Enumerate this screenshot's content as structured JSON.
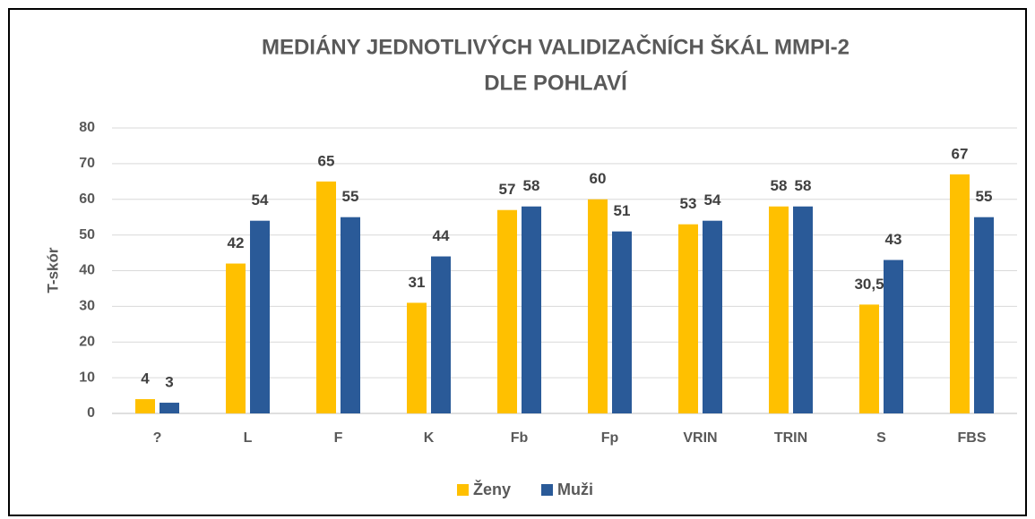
{
  "chart_data": {
    "type": "bar",
    "title": [
      "MEDIÁNY JEDNOTLIVÝCH VALIDIZAČNÍCH ŠKÁL MMPI-2",
      "DLE POHLAVÍ"
    ],
    "y_label": "T-skór",
    "categories": [
      "?",
      "L",
      "F",
      "K",
      "Fb",
      "Fp",
      "VRIN",
      "TRIN",
      "S",
      "FBS"
    ],
    "series": [
      {
        "name": "Ženy",
        "color": "#ffc000",
        "values": [
          4,
          42,
          65,
          31,
          57,
          60,
          53,
          58,
          30.5,
          67
        ],
        "value_labels": [
          "4",
          "42",
          "65",
          "31",
          "57",
          "60",
          "53",
          "58",
          "30,5",
          "67"
        ]
      },
      {
        "name": "Muži",
        "color": "#2a5a98",
        "values": [
          3,
          54,
          55,
          44,
          58,
          51,
          54,
          58,
          43,
          55
        ]
      }
    ],
    "ylim": [
      0,
      80
    ],
    "yticks": [
      0,
      10,
      20,
      30,
      40,
      50,
      60,
      70,
      80
    ],
    "grid": true,
    "legend": "bottom"
  }
}
